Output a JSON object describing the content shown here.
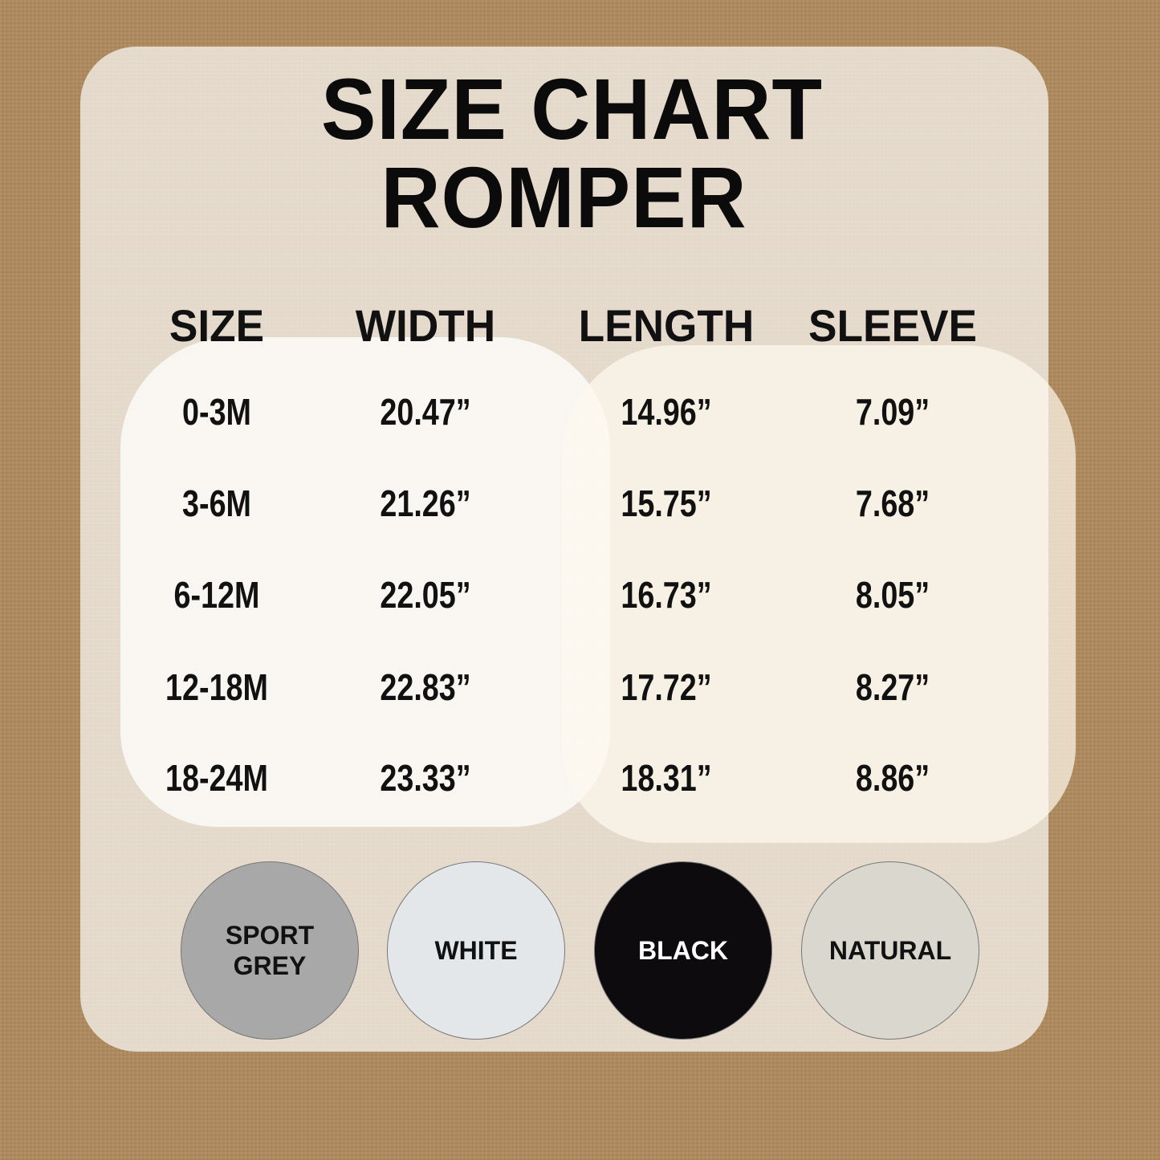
{
  "title": {
    "line1": "SIZE CHART",
    "line2": "ROMPER"
  },
  "table": {
    "headers": [
      "SIZE",
      "WIDTH",
      "LENGTH",
      "SLEEVE"
    ],
    "rows": [
      [
        "0-3M",
        "20.47”",
        "14.96”",
        "7.09”"
      ],
      [
        "3-6M",
        "21.26”",
        "15.75”",
        "7.68”"
      ],
      [
        "6-12M",
        "22.05”",
        "16.73”",
        "8.05”"
      ],
      [
        "12-18M",
        "22.83”",
        "17.72”",
        "8.27”"
      ],
      [
        "18-24M",
        "23.33”",
        "18.31”",
        "8.86”"
      ]
    ]
  },
  "colors": [
    {
      "line1": "SPORT",
      "line2": "GREY",
      "hex": "#a8a8a8",
      "text": "#111111"
    },
    {
      "line1": "WHITE",
      "line2": "",
      "hex": "#e4e7ea",
      "text": "#111111"
    },
    {
      "line1": "BLACK",
      "line2": "",
      "hex": "#0e0b0f",
      "text": "#ffffff"
    },
    {
      "line1": "NATURAL",
      "line2": "",
      "hex": "#d9d7ce",
      "text": "#111111"
    }
  ]
}
